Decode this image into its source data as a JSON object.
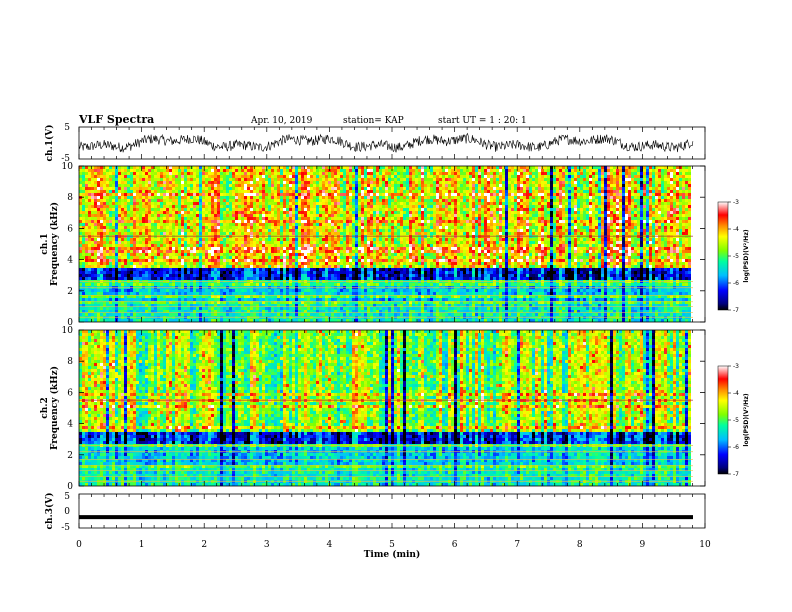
{
  "header": {
    "title": "VLF Spectra",
    "date": "Apr. 10, 2019",
    "station": "station= KAP",
    "start": "start UT = 1 : 20: 1"
  },
  "chart_data": [
    {
      "id": "ch1-waveform",
      "type": "line",
      "ylabel": "ch.1(V)",
      "ylim": [
        -5,
        5
      ],
      "yticks": [
        "5",
        "-5"
      ],
      "xlim": [
        0,
        10
      ],
      "description": "noisy waveform oscillating roughly between -3 and +3 V"
    },
    {
      "id": "ch1-spectrogram",
      "type": "heatmap",
      "ylabel_top": "ch.1",
      "ylabel": "Frequency (kHz)",
      "ylim": [
        0,
        10
      ],
      "yticks": [
        "0",
        "2",
        "4",
        "6",
        "8",
        "10"
      ],
      "xlim": [
        0,
        10
      ],
      "colorbar": {
        "label": "log(PSD)(V²/Hz)",
        "range": [
          -7,
          -3
        ],
        "ticks": [
          "-3",
          "-4",
          "-5",
          "-6",
          "-7"
        ]
      }
    },
    {
      "id": "ch2-spectrogram",
      "type": "heatmap",
      "ylabel_top": "ch.2",
      "ylabel": "Frequency (kHz)",
      "ylim": [
        0,
        10
      ],
      "yticks": [
        "0",
        "2",
        "4",
        "6",
        "8",
        "10"
      ],
      "xlim": [
        0,
        10
      ],
      "colorbar": {
        "label": "log(PSD)(V²/Hz)",
        "range": [
          -7,
          -3
        ],
        "ticks": [
          "-3",
          "-4",
          "-5",
          "-6",
          "-7"
        ]
      }
    },
    {
      "id": "ch3-waveform",
      "type": "line",
      "ylabel": "ch.3(V)",
      "ylim": [
        -5,
        5
      ],
      "yticks": [
        "5",
        "0",
        "-5"
      ],
      "xlim": [
        0,
        10
      ],
      "xlabel": "Time (min)",
      "xticks": [
        "0",
        "1",
        "2",
        "3",
        "4",
        "5",
        "6",
        "7",
        "8",
        "9",
        "10"
      ],
      "description": "flat line near -1.8 V"
    }
  ]
}
